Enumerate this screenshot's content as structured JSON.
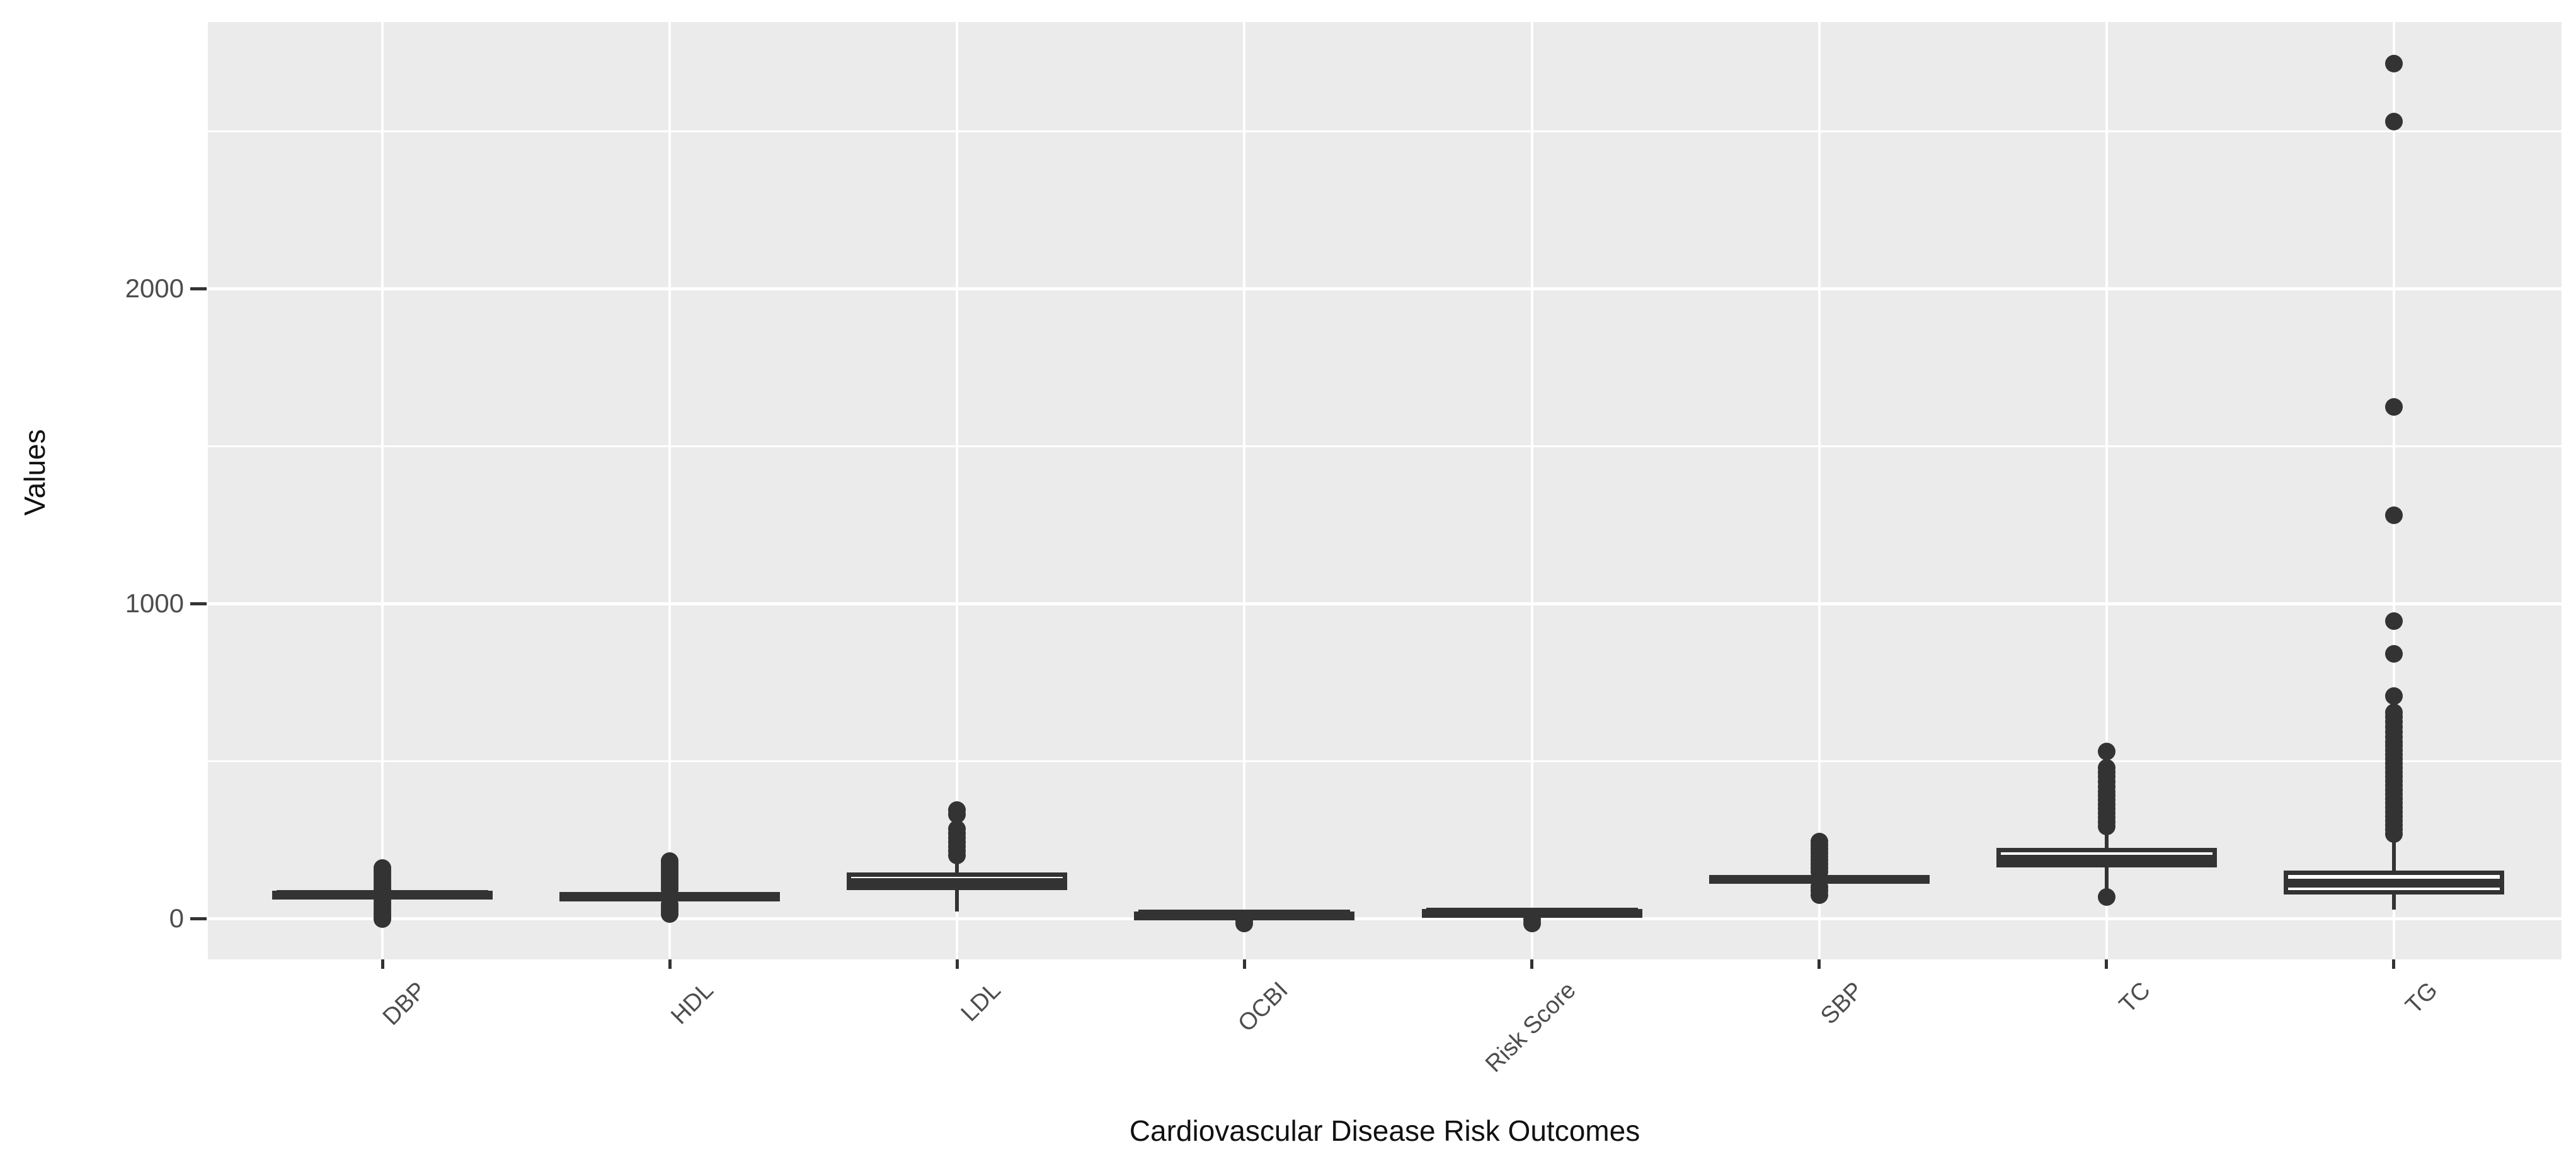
{
  "figure": {
    "background_color": "#FFFFFF",
    "panel_background_color": "#EBEBEB",
    "gridline_color": "#FFFFFF",
    "box_stroke_color": "#333333",
    "box_fill_color": "#FFFFFF",
    "axis_text_color": "#4D4D4D",
    "axis_title_color": "#111111"
  },
  "y_axis": {
    "title": "Values",
    "tick_labels": [
      "0",
      "1000",
      "2000"
    ],
    "tick_values": [
      0,
      1000,
      2000
    ],
    "minor_values": [
      500,
      1500,
      2500
    ]
  },
  "x_axis": {
    "title": "Cardiovascular Disease Risk Outcomes",
    "tick_labels": [
      "DBP",
      "HDL",
      "LDL",
      "OCBI",
      "Risk Score",
      "SBP",
      "TC",
      "TG"
    ]
  },
  "chart_data": {
    "type": "boxplot",
    "title": "",
    "xlabel": "Cardiovascular Disease Risk Outcomes",
    "ylabel": "Values",
    "categories": [
      "DBP",
      "HDL",
      "LDL",
      "OCBI",
      "Risk Score",
      "SBP",
      "TC",
      "TG"
    ],
    "y_ticks": [
      0,
      1000,
      2000
    ],
    "y_minor_gridlines": [
      500,
      1500,
      2500
    ],
    "ylim": [
      -120,
      2850
    ],
    "grid": true,
    "legend_position": "none",
    "boxes": [
      {
        "category": "DBP",
        "q1": 64,
        "median": 76,
        "q3": 88,
        "whisker_low": 58,
        "whisker_high": 92,
        "outliers": [
          160,
          150,
          140,
          130,
          120,
          110,
          100,
          92,
          56,
          46,
          36,
          26,
          16,
          6,
          -2
        ]
      },
      {
        "category": "HDL",
        "q1": 54,
        "median": 70,
        "q3": 84,
        "whisker_low": 44,
        "whisker_high": 90,
        "outliers": [
          182,
          172,
          162,
          152,
          142,
          132,
          122,
          112,
          102,
          92,
          44,
          34,
          24,
          14
        ]
      },
      {
        "category": "LDL",
        "q1": 90,
        "median": 114,
        "q3": 146,
        "whisker_low": 22,
        "whisker_high": 195,
        "outliers": [
          200,
          214,
          228,
          242,
          256,
          270,
          284,
          330,
          345
        ]
      },
      {
        "category": "OCBI",
        "q1": 6,
        "median": 14,
        "q3": 22,
        "whisker_low": 2,
        "whisker_high": 26,
        "outliers": [
          -6,
          -16
        ]
      },
      {
        "category": "Risk Score",
        "q1": 10,
        "median": 20,
        "q3": 30,
        "whisker_low": 6,
        "whisker_high": 34,
        "outliers": [
          -4,
          -16
        ]
      },
      {
        "category": "SBP",
        "q1": 112,
        "median": 125,
        "q3": 138,
        "whisker_low": 105,
        "whisker_high": 145,
        "outliers": [
          148,
          160,
          172,
          184,
          196,
          208,
          220,
          232,
          244,
          100,
          88,
          75
        ]
      },
      {
        "category": "TC",
        "q1": 162,
        "median": 188,
        "q3": 224,
        "whisker_low": 80,
        "whisker_high": 284,
        "outliers": [
          292,
          306,
          320,
          334,
          348,
          362,
          376,
          390,
          402,
          418,
          434,
          450,
          464,
          478,
          530,
          68
        ]
      },
      {
        "category": "TG",
        "q1": 76,
        "median": 113,
        "q3": 152,
        "whisker_low": 28,
        "whisker_high": 250,
        "outliers": [
          268,
          282,
          296,
          310,
          324,
          338,
          352,
          366,
          380,
          394,
          408,
          422,
          436,
          450,
          464,
          478,
          492,
          506,
          520,
          534,
          548,
          560,
          576,
          592,
          608,
          624,
          640,
          654,
          706,
          840,
          944,
          1280,
          1624,
          2530,
          2714
        ]
      }
    ]
  }
}
